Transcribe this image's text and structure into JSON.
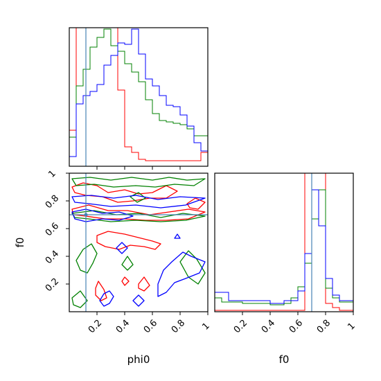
{
  "chart_data": [
    {
      "type": "histogram",
      "panel": "phi0-marginal",
      "x": [
        0.0,
        0.05,
        0.1,
        0.15,
        0.2,
        0.25,
        0.3,
        0.35,
        0.4,
        0.45,
        0.5,
        0.55,
        0.6,
        0.65,
        0.7,
        0.75,
        0.8,
        0.85,
        0.9,
        0.95,
        1.0
      ],
      "xlim": [
        0,
        1
      ],
      "xticks": [
        0.2,
        0.4,
        0.6,
        0.8
      ],
      "truth": 0.12,
      "series": [
        {
          "color": "#ff0000",
          "values": [
            0.26,
            1.2,
            1.2,
            1.2,
            1.2,
            1.2,
            1.02,
            0.55,
            0.14,
            0.1,
            0.05,
            0.04,
            0.04,
            0.04,
            0.04,
            0.04,
            0.04,
            0.04,
            0.04,
            0.1
          ]
        },
        {
          "color": "#008000",
          "values": [
            0.21,
            0.58,
            0.7,
            0.86,
            0.93,
            0.99,
            0.87,
            0.83,
            0.74,
            0.68,
            0.61,
            0.48,
            0.38,
            0.33,
            0.32,
            0.31,
            0.3,
            0.27,
            0.22,
            0.22
          ]
        },
        {
          "color": "#0000ff",
          "values": [
            0.07,
            0.45,
            0.51,
            0.54,
            0.59,
            0.73,
            0.8,
            0.89,
            0.88,
            0.99,
            0.81,
            0.63,
            0.58,
            0.51,
            0.44,
            0.43,
            0.37,
            0.29,
            0.17,
            0.11
          ]
        }
      ]
    },
    {
      "type": "contour",
      "panel": "phi0-f0-joint",
      "xlabel": "phi0",
      "ylabel": "f0",
      "xlim": [
        0,
        1
      ],
      "ylim": [
        0,
        1
      ],
      "xticks": [
        0.2,
        0.4,
        0.6,
        0.8,
        1.0
      ],
      "yticks": [
        0.2,
        0.4,
        0.6,
        0.8,
        1.0
      ],
      "truth": {
        "x": 0.12,
        "y": 0.7
      },
      "series": [
        {
          "color": "#ff0000",
          "contours": [
            [
              [
                0.02,
                0.9
              ],
              [
                0.1,
                0.93
              ],
              [
                0.2,
                0.91
              ],
              [
                0.28,
                0.86
              ],
              [
                0.4,
                0.88
              ],
              [
                0.5,
                0.85
              ],
              [
                0.6,
                0.86
              ],
              [
                0.7,
                0.91
              ],
              [
                0.78,
                0.87
              ],
              [
                0.7,
                0.82
              ],
              [
                0.58,
                0.82
              ],
              [
                0.46,
                0.8
              ],
              [
                0.35,
                0.79
              ],
              [
                0.24,
                0.83
              ],
              [
                0.12,
                0.84
              ],
              [
                0.04,
                0.86
              ]
            ],
            [
              [
                0.02,
                0.74
              ],
              [
                0.14,
                0.77
              ],
              [
                0.28,
                0.73
              ],
              [
                0.42,
                0.73
              ],
              [
                0.58,
                0.7
              ],
              [
                0.72,
                0.72
              ],
              [
                0.86,
                0.74
              ],
              [
                0.98,
                0.72
              ],
              [
                0.86,
                0.67
              ],
              [
                0.7,
                0.66
              ],
              [
                0.55,
                0.66
              ],
              [
                0.4,
                0.67
              ],
              [
                0.26,
                0.67
              ],
              [
                0.12,
                0.69
              ],
              [
                0.03,
                0.7
              ]
            ],
            [
              [
                0.2,
                0.55
              ],
              [
                0.28,
                0.58
              ],
              [
                0.4,
                0.56
              ],
              [
                0.52,
                0.53
              ],
              [
                0.6,
                0.51
              ],
              [
                0.66,
                0.49
              ],
              [
                0.62,
                0.45
              ],
              [
                0.54,
                0.47
              ],
              [
                0.44,
                0.48
              ],
              [
                0.36,
                0.45
              ],
              [
                0.26,
                0.47
              ],
              [
                0.2,
                0.5
              ]
            ],
            [
              [
                0.19,
                0.17
              ],
              [
                0.21,
                0.22
              ],
              [
                0.25,
                0.16
              ],
              [
                0.27,
                0.1
              ],
              [
                0.23,
                0.08
              ],
              [
                0.19,
                0.12
              ]
            ],
            [
              [
                0.5,
                0.2
              ],
              [
                0.54,
                0.25
              ],
              [
                0.58,
                0.19
              ],
              [
                0.54,
                0.15
              ],
              [
                0.5,
                0.17
              ]
            ],
            [
              [
                0.85,
                0.78
              ],
              [
                0.91,
                0.82
              ],
              [
                0.98,
                0.79
              ],
              [
                0.93,
                0.74
              ],
              [
                0.87,
                0.75
              ]
            ],
            [
              [
                0.38,
                0.22
              ],
              [
                0.4,
                0.25
              ],
              [
                0.43,
                0.22
              ],
              [
                0.4,
                0.19
              ]
            ]
          ]
        },
        {
          "color": "#008000",
          "contours": [
            [
              [
                0.02,
                0.96
              ],
              [
                0.15,
                0.97
              ],
              [
                0.3,
                0.95
              ],
              [
                0.45,
                0.97
              ],
              [
                0.6,
                0.95
              ],
              [
                0.72,
                0.97
              ],
              [
                0.85,
                0.95
              ],
              [
                0.98,
                0.96
              ],
              [
                0.9,
                0.91
              ],
              [
                0.76,
                0.92
              ],
              [
                0.62,
                0.9
              ],
              [
                0.48,
                0.91
              ],
              [
                0.32,
                0.9
              ],
              [
                0.18,
                0.92
              ],
              [
                0.05,
                0.91
              ]
            ],
            [
              [
                0.02,
                0.71
              ],
              [
                0.18,
                0.73
              ],
              [
                0.34,
                0.7
              ],
              [
                0.5,
                0.71
              ],
              [
                0.66,
                0.68
              ],
              [
                0.82,
                0.71
              ],
              [
                0.98,
                0.69
              ],
              [
                0.84,
                0.66
              ],
              [
                0.66,
                0.65
              ],
              [
                0.48,
                0.66
              ],
              [
                0.3,
                0.65
              ],
              [
                0.14,
                0.67
              ],
              [
                0.04,
                0.68
              ]
            ],
            [
              [
                0.05,
                0.37
              ],
              [
                0.1,
                0.45
              ],
              [
                0.16,
                0.49
              ],
              [
                0.2,
                0.42
              ],
              [
                0.17,
                0.35
              ],
              [
                0.13,
                0.28
              ],
              [
                0.08,
                0.3
              ]
            ],
            [
              [
                0.38,
                0.34
              ],
              [
                0.42,
                0.4
              ],
              [
                0.46,
                0.34
              ],
              [
                0.42,
                0.3
              ]
            ],
            [
              [
                0.8,
                0.36
              ],
              [
                0.86,
                0.44
              ],
              [
                0.92,
                0.38
              ],
              [
                0.98,
                0.28
              ],
              [
                0.93,
                0.2
              ],
              [
                0.86,
                0.25
              ]
            ],
            [
              [
                0.02,
                0.1
              ],
              [
                0.08,
                0.15
              ],
              [
                0.13,
                0.08
              ],
              [
                0.08,
                0.03
              ],
              [
                0.03,
                0.05
              ]
            ],
            [
              [
                0.44,
                0.83
              ],
              [
                0.5,
                0.86
              ],
              [
                0.55,
                0.82
              ],
              [
                0.49,
                0.79
              ]
            ]
          ]
        },
        {
          "color": "#0000ff",
          "contours": [
            [
              [
                0.02,
                0.83
              ],
              [
                0.16,
                0.84
              ],
              [
                0.32,
                0.82
              ],
              [
                0.48,
                0.84
              ],
              [
                0.64,
                0.81
              ],
              [
                0.8,
                0.83
              ],
              [
                0.98,
                0.82
              ],
              [
                0.84,
                0.77
              ],
              [
                0.66,
                0.75
              ],
              [
                0.48,
                0.77
              ],
              [
                0.3,
                0.76
              ],
              [
                0.14,
                0.78
              ],
              [
                0.04,
                0.79
              ]
            ],
            [
              [
                0.02,
                0.72
              ],
              [
                0.12,
                0.74
              ],
              [
                0.24,
                0.71
              ],
              [
                0.36,
                0.72
              ],
              [
                0.46,
                0.69
              ],
              [
                0.36,
                0.66
              ],
              [
                0.24,
                0.67
              ],
              [
                0.12,
                0.65
              ],
              [
                0.04,
                0.67
              ]
            ],
            [
              [
                0.64,
                0.2
              ],
              [
                0.68,
                0.3
              ],
              [
                0.74,
                0.36
              ],
              [
                0.82,
                0.43
              ],
              [
                0.88,
                0.4
              ],
              [
                0.98,
                0.36
              ],
              [
                0.94,
                0.28
              ],
              [
                0.84,
                0.24
              ],
              [
                0.76,
                0.21
              ],
              [
                0.7,
                0.14
              ],
              [
                0.64,
                0.11
              ]
            ],
            [
              [
                0.22,
                0.08
              ],
              [
                0.25,
                0.13
              ],
              [
                0.29,
                0.15
              ],
              [
                0.32,
                0.11
              ],
              [
                0.29,
                0.06
              ],
              [
                0.25,
                0.04
              ]
            ],
            [
              [
                0.34,
                0.46
              ],
              [
                0.38,
                0.5
              ],
              [
                0.42,
                0.46
              ],
              [
                0.38,
                0.42
              ]
            ],
            [
              [
                0.76,
                0.53
              ],
              [
                0.78,
                0.56
              ],
              [
                0.8,
                0.53
              ]
            ],
            [
              [
                0.46,
                0.08
              ],
              [
                0.5,
                0.12
              ],
              [
                0.54,
                0.08
              ],
              [
                0.5,
                0.04
              ]
            ]
          ]
        }
      ]
    },
    {
      "type": "histogram",
      "panel": "f0-marginal",
      "xlabel": "f0",
      "x": [
        0.0,
        0.05,
        0.1,
        0.15,
        0.2,
        0.25,
        0.3,
        0.35,
        0.4,
        0.45,
        0.5,
        0.55,
        0.6,
        0.65,
        0.7,
        0.75,
        0.8,
        0.85,
        0.9,
        0.95,
        1.0
      ],
      "xlim": [
        0,
        1
      ],
      "xticks": [
        0.2,
        0.4,
        0.6,
        0.8,
        1.0
      ],
      "truth": 0.7,
      "series": [
        {
          "color": "#ff0000",
          "values": [
            0.01,
            0.01,
            0.01,
            0.01,
            0.01,
            0.01,
            0.01,
            0.01,
            0.01,
            0.01,
            0.01,
            0.01,
            0.01,
            1.2,
            1.2,
            1.2,
            0.06,
            0.03,
            0.01,
            0.01
          ]
        },
        {
          "color": "#008000",
          "values": [
            0.1,
            0.07,
            0.07,
            0.07,
            0.06,
            0.06,
            0.06,
            0.06,
            0.05,
            0.05,
            0.06,
            0.1,
            0.18,
            0.35,
            0.67,
            0.88,
            0.17,
            0.1,
            0.07,
            0.07
          ]
        },
        {
          "color": "#0000ff",
          "values": [
            0.14,
            0.14,
            0.08,
            0.08,
            0.08,
            0.08,
            0.08,
            0.08,
            0.06,
            0.06,
            0.08,
            0.08,
            0.15,
            0.42,
            0.88,
            0.62,
            0.24,
            0.12,
            0.08,
            0.08
          ]
        }
      ]
    }
  ],
  "truth_color": "#4682b4"
}
